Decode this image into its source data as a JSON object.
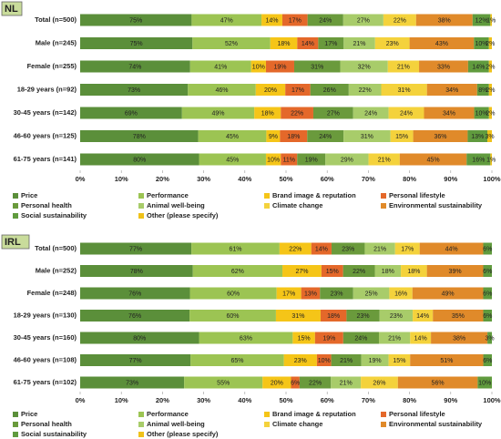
{
  "chart_data": [
    {
      "type": "stacked_bar_100",
      "title": "NL",
      "categories": [
        "Total (n=500)",
        "Male (n=245)",
        "Female (n=255)",
        "18-29 years (n=92)",
        "30-45 years (n=142)",
        "46-60 years (n=125)",
        "61-75 years (n=141)"
      ],
      "xlim": [
        0,
        100
      ],
      "xticks": [
        {
          "value": 0,
          "label": "0%"
        },
        {
          "value": 10,
          "label": "10%"
        },
        {
          "value": 20,
          "label": "20%"
        },
        {
          "value": 30,
          "label": "30%"
        },
        {
          "value": 40,
          "label": "40%"
        },
        {
          "value": 50,
          "label": "50%"
        },
        {
          "value": 60,
          "label": "60%"
        },
        {
          "value": 70,
          "label": "70%"
        },
        {
          "value": 80,
          "label": "80%"
        },
        {
          "value": 90,
          "label": "90%"
        },
        {
          "value": 100,
          "label": "100%"
        }
      ],
      "series": [
        {
          "name": "Price",
          "color": "#5b8f3a",
          "values": [
            75,
            75,
            74,
            73,
            69,
            78,
            80
          ],
          "value_labels": [
            "75%",
            "75%",
            "74%",
            "73%",
            "69%",
            "78%",
            "80%"
          ]
        },
        {
          "name": "Performance",
          "color": "#9cc453",
          "values": [
            47,
            52,
            41,
            46,
            49,
            45,
            45
          ],
          "value_labels": [
            "47%",
            "52%",
            "41%",
            "46%",
            "49%",
            "45%",
            "45%"
          ]
        },
        {
          "name": "Brand image & reputation",
          "color": "#f5c518",
          "values": [
            14,
            18,
            10,
            20,
            18,
            9,
            10
          ],
          "value_labels": [
            "14%",
            "18%",
            "10%",
            "20%",
            "18%",
            "9%",
            "10%"
          ]
        },
        {
          "name": "Personal lifestyle",
          "color": "#e4682a",
          "values": [
            17,
            14,
            19,
            17,
            22,
            18,
            11
          ],
          "value_labels": [
            "17%",
            "14%",
            "19%",
            "17%",
            "22%",
            "18%",
            "11%"
          ]
        },
        {
          "name": "Personal health",
          "color": "#6a9a3c",
          "values": [
            24,
            17,
            31,
            26,
            27,
            24,
            19
          ],
          "value_labels": [
            "24%",
            "17%",
            "31%",
            "26%",
            "27%",
            "24%",
            "19%"
          ]
        },
        {
          "name": "Animal well-being",
          "color": "#a8cc6a",
          "values": [
            27,
            21,
            32,
            22,
            24,
            31,
            29
          ],
          "value_labels": [
            "27%",
            "21%",
            "32%",
            "22%",
            "24%",
            "31%",
            "29%"
          ]
        },
        {
          "name": "Climate change",
          "color": "#f4d23c",
          "values": [
            22,
            23,
            21,
            31,
            24,
            15,
            21
          ],
          "value_labels": [
            "22%",
            "23%",
            "21%",
            "31%",
            "24%",
            "15%",
            "21%"
          ]
        },
        {
          "name": "Environmental sustainability",
          "color": "#e08a2a",
          "values": [
            38,
            43,
            33,
            34,
            34,
            36,
            45
          ],
          "value_labels": [
            "38%",
            "43%",
            "33%",
            "34%",
            "34%",
            "36%",
            "45%"
          ]
        },
        {
          "name": "Social sustainability",
          "color": "#609b3e",
          "values": [
            12,
            10,
            14,
            8,
            10,
            13,
            16
          ],
          "value_labels": [
            "12%",
            "10%",
            "14%",
            "8%",
            "10%",
            "13%",
            "16%"
          ]
        },
        {
          "name": "Other (please specify)",
          "color": "#efc21a",
          "values": [
            1,
            2,
            2,
            2,
            2,
            3,
            1
          ],
          "value_labels": [
            "1%",
            "2%",
            "2%",
            "2%",
            "2%",
            "3%",
            "1%"
          ]
        }
      ]
    },
    {
      "type": "stacked_bar_100",
      "title": "IRL",
      "categories": [
        "Total (n=500)",
        "Male (n=252)",
        "Female (n=248)",
        "18-29 years (n=130)",
        "30-45 years (n=160)",
        "46-60 years (n=108)",
        "61-75 years (n=102)"
      ],
      "xlim": [
        0,
        100
      ],
      "xticks": [
        {
          "value": 0,
          "label": "0%"
        },
        {
          "value": 10,
          "label": "10%"
        },
        {
          "value": 20,
          "label": "20%"
        },
        {
          "value": 30,
          "label": "30%"
        },
        {
          "value": 40,
          "label": "40%"
        },
        {
          "value": 50,
          "label": "50%"
        },
        {
          "value": 60,
          "label": "60%"
        },
        {
          "value": 70,
          "label": "70%"
        },
        {
          "value": 80,
          "label": "80%"
        },
        {
          "value": 90,
          "label": "90%"
        },
        {
          "value": 100,
          "label": "100%"
        }
      ],
      "series": [
        {
          "name": "Price",
          "color": "#5b8f3a",
          "values": [
            77,
            78,
            76,
            76,
            80,
            77,
            73
          ],
          "value_labels": [
            "77%",
            "78%",
            "76%",
            "76%",
            "80%",
            "77%",
            "73%"
          ]
        },
        {
          "name": "Performance",
          "color": "#9cc453",
          "values": [
            61,
            62,
            60,
            60,
            63,
            65,
            55
          ],
          "value_labels": [
            "61%",
            "62%",
            "60%",
            "60%",
            "63%",
            "65%",
            "55%"
          ]
        },
        {
          "name": "Brand image & reputation",
          "color": "#f5c518",
          "values": [
            22,
            27,
            17,
            31,
            15,
            23,
            20
          ],
          "value_labels": [
            "22%",
            "27%",
            "17%",
            "31%",
            "15%",
            "23%",
            "20%"
          ]
        },
        {
          "name": "Personal lifestyle",
          "color": "#e4682a",
          "values": [
            14,
            15,
            13,
            18,
            19,
            10,
            6
          ],
          "value_labels": [
            "14%",
            "15%",
            "13%",
            "18%",
            "19%",
            "10%",
            "6%"
          ]
        },
        {
          "name": "Personal health",
          "color": "#6a9a3c",
          "values": [
            23,
            22,
            23,
            23,
            24,
            21,
            22
          ],
          "value_labels": [
            "23%",
            "22%",
            "23%",
            "23%",
            "24%",
            "21%",
            "22%"
          ]
        },
        {
          "name": "Animal well-being",
          "color": "#a8cc6a",
          "values": [
            21,
            18,
            25,
            23,
            21,
            19,
            21
          ],
          "value_labels": [
            "21%",
            "18%",
            "25%",
            "23%",
            "21%",
            "19%",
            "21%"
          ]
        },
        {
          "name": "Climate change",
          "color": "#f4d23c",
          "values": [
            17,
            18,
            16,
            14,
            14,
            15,
            26
          ],
          "value_labels": [
            "17%",
            "18%",
            "16%",
            "14%",
            "14%",
            "15%",
            "26%"
          ]
        },
        {
          "name": "Environmental sustainability",
          "color": "#e08a2a",
          "values": [
            44,
            39,
            49,
            35,
            38,
            51,
            56
          ],
          "value_labels": [
            "44%",
            "39%",
            "49%",
            "35%",
            "38%",
            "51%",
            "56%"
          ]
        },
        {
          "name": "Social sustainability",
          "color": "#609b3e",
          "values": [
            6,
            6,
            6,
            6,
            3,
            6,
            10
          ],
          "value_labels": [
            "6%",
            "6%",
            "6%",
            "6%",
            "3%",
            "6%",
            "10%"
          ]
        },
        {
          "name": "Other (please specify)",
          "color": "#efc21a",
          "values": [
            null,
            null,
            null,
            null,
            null,
            null,
            null
          ]
        }
      ]
    }
  ]
}
